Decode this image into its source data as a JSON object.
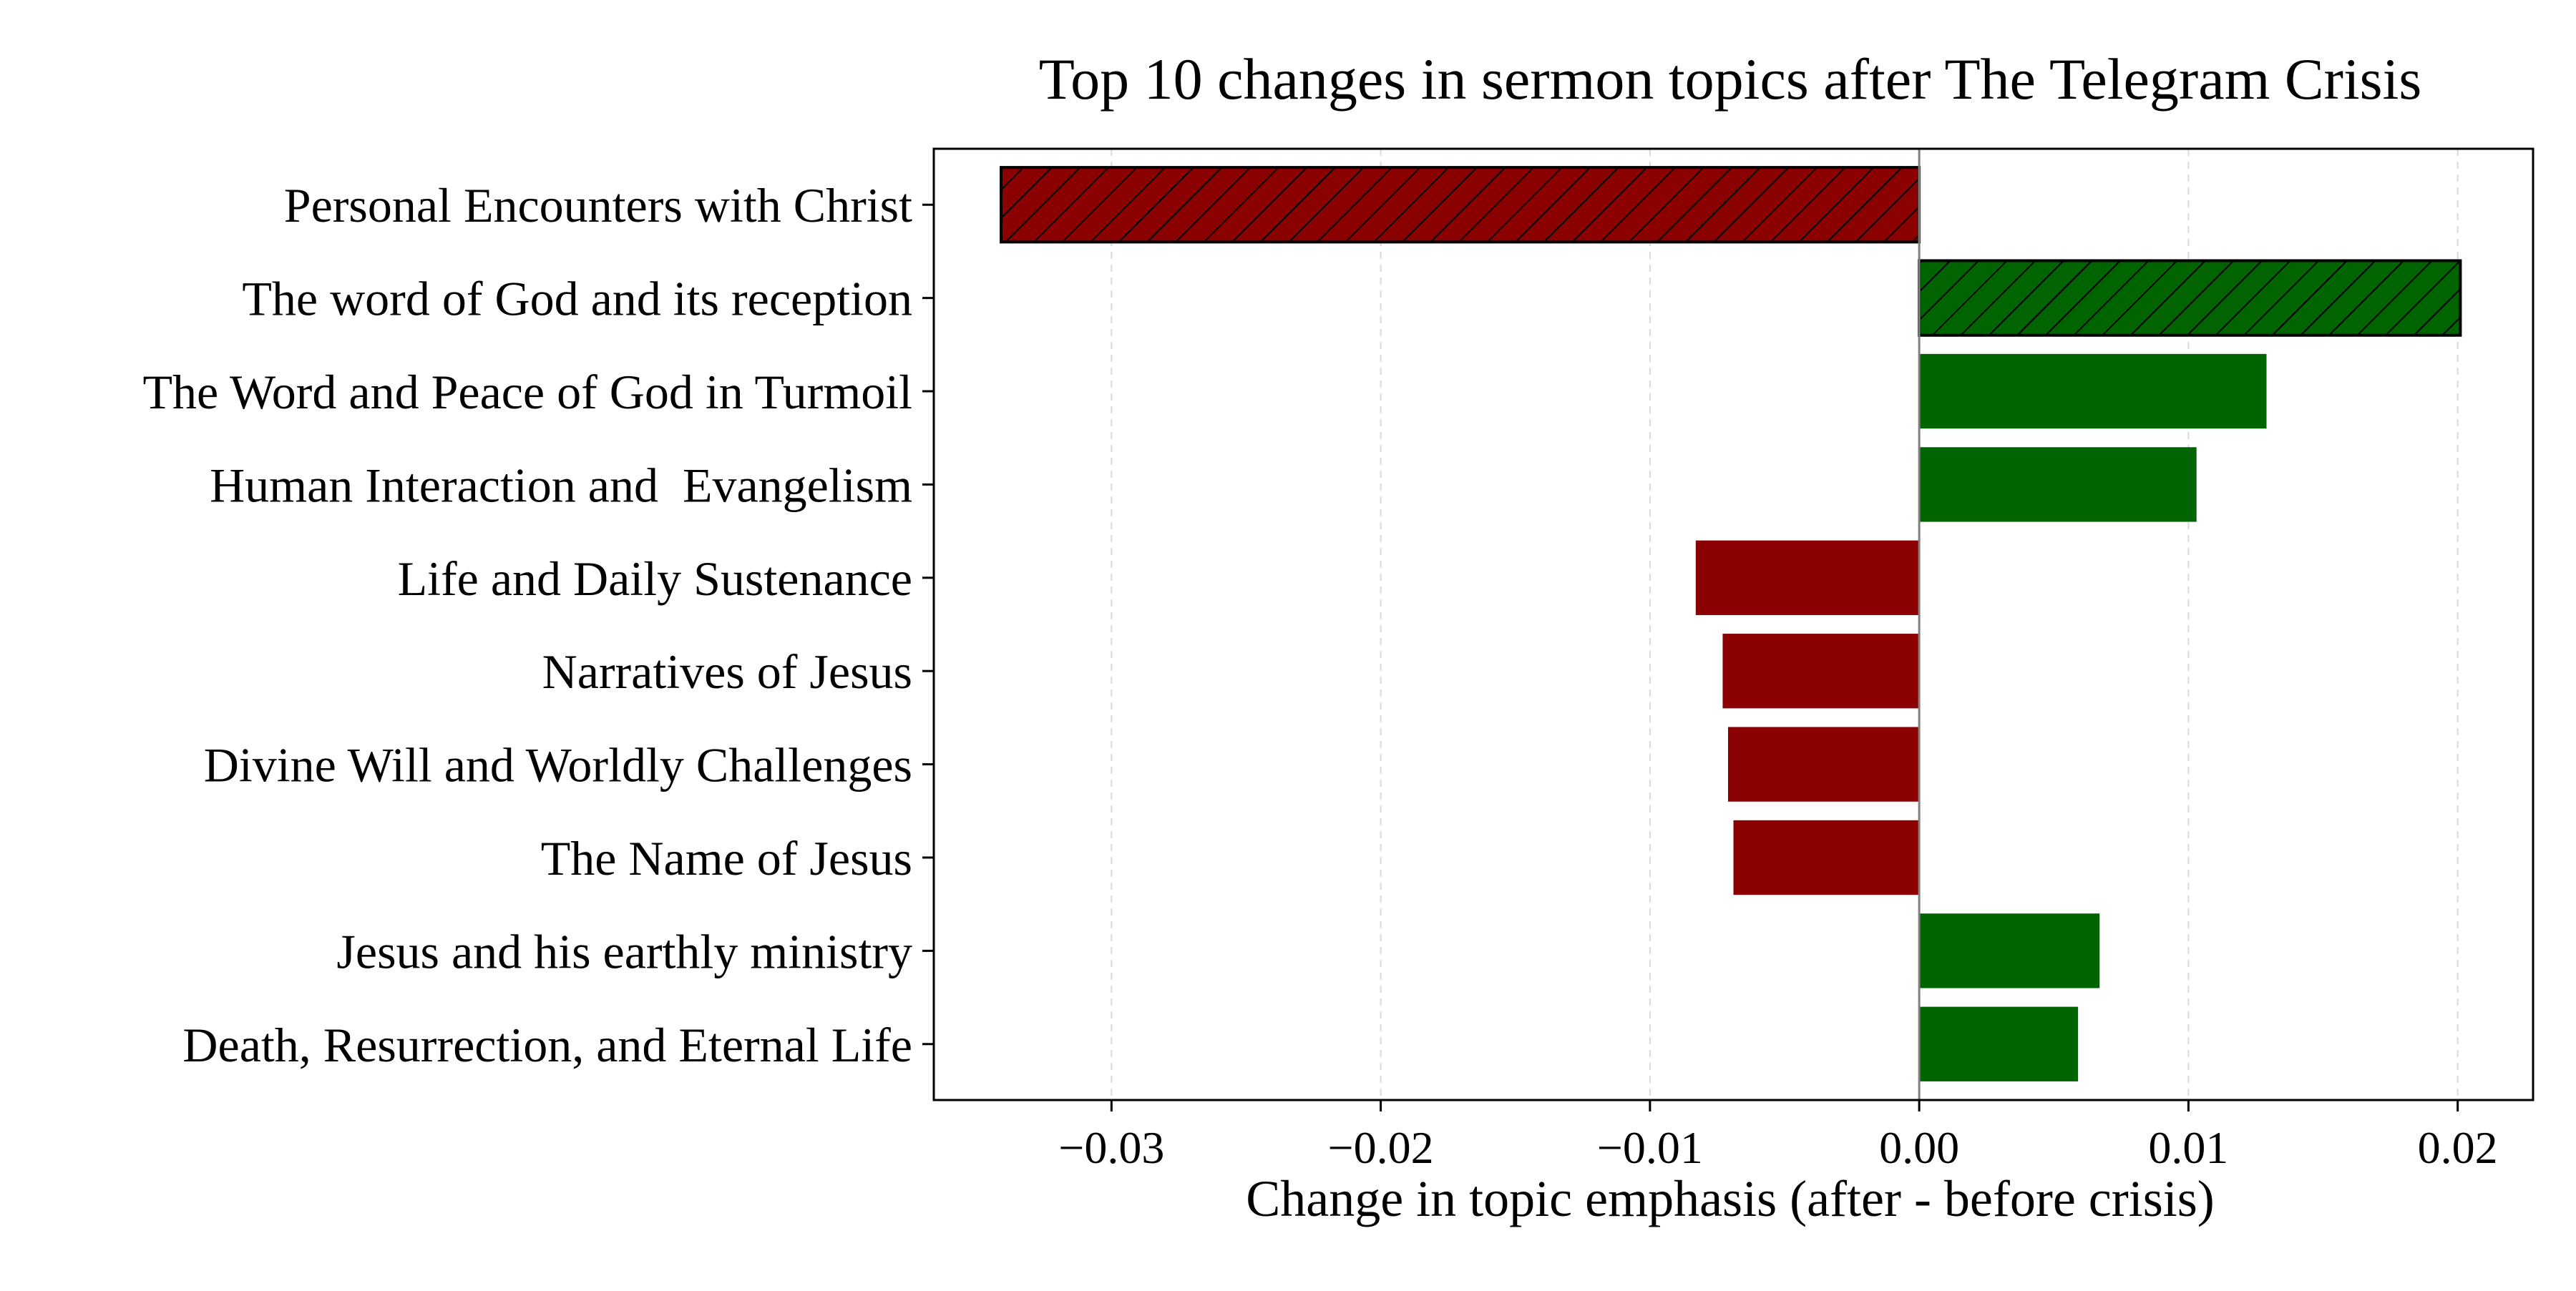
{
  "chart_data": {
    "type": "bar",
    "orientation": "horizontal",
    "title": "Top 10 changes in sermon topics after The Telegram Crisis",
    "xlabel": "Change in topic emphasis (after - before crisis)",
    "ylabel": "",
    "xlim": [
      -0.0366,
      0.0228
    ],
    "xticks": [
      -0.03,
      -0.02,
      -0.01,
      0.0,
      0.01,
      0.02
    ],
    "xtick_labels": [
      "−0.03",
      "−0.02",
      "−0.01",
      "0.00",
      "0.01",
      "0.02"
    ],
    "grid": {
      "x": true,
      "y": false
    },
    "categories": [
      "Personal Encounters with Christ",
      "The word of God and its reception",
      "The Word and Peace of God in Turmoil",
      "Human Interaction and  Evangelism",
      "Life and Daily Sustenance",
      "Narratives of Jesus",
      "Divine Will and Worldly Challenges",
      "The Name of Jesus",
      "Jesus and his earthly ministry",
      "Death, Resurrection, and Eternal Life"
    ],
    "values": [
      -0.0341,
      0.0201,
      0.0129,
      0.0103,
      -0.0083,
      -0.0073,
      -0.0071,
      -0.0069,
      0.0067,
      0.0059
    ],
    "hatched": [
      true,
      true,
      false,
      false,
      false,
      false,
      false,
      false,
      false,
      false
    ],
    "colors": {
      "positive": "#006400",
      "negative": "#8b0000",
      "hatch": "#000000",
      "zero_line": "#808080",
      "grid": "#d9d9d9"
    }
  }
}
